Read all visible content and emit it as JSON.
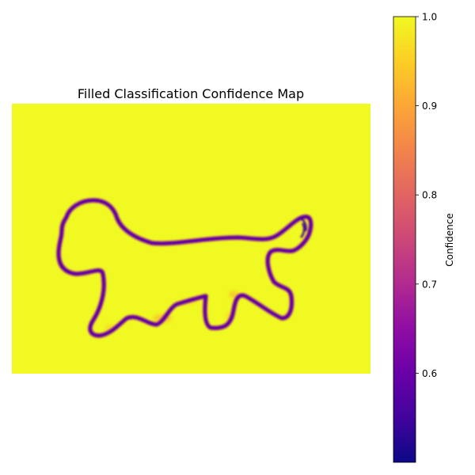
{
  "chart_data": {
    "type": "heatmap",
    "title": "Filled Classification Confidence Map",
    "description_of_values": "",
    "colormap": "plasma",
    "value_range": [
      0.5,
      1.0
    ],
    "interior_value": 1.0,
    "boundary_value": 0.5,
    "colorbar": {
      "label": "Confidence",
      "ticks": [
        1.0,
        0.9,
        0.8,
        0.7,
        0.6
      ],
      "tick_labels": [
        "1.0",
        "0.9",
        "0.8",
        "0.7",
        "0.6"
      ]
    },
    "axes_visible": false,
    "grid": false
  }
}
